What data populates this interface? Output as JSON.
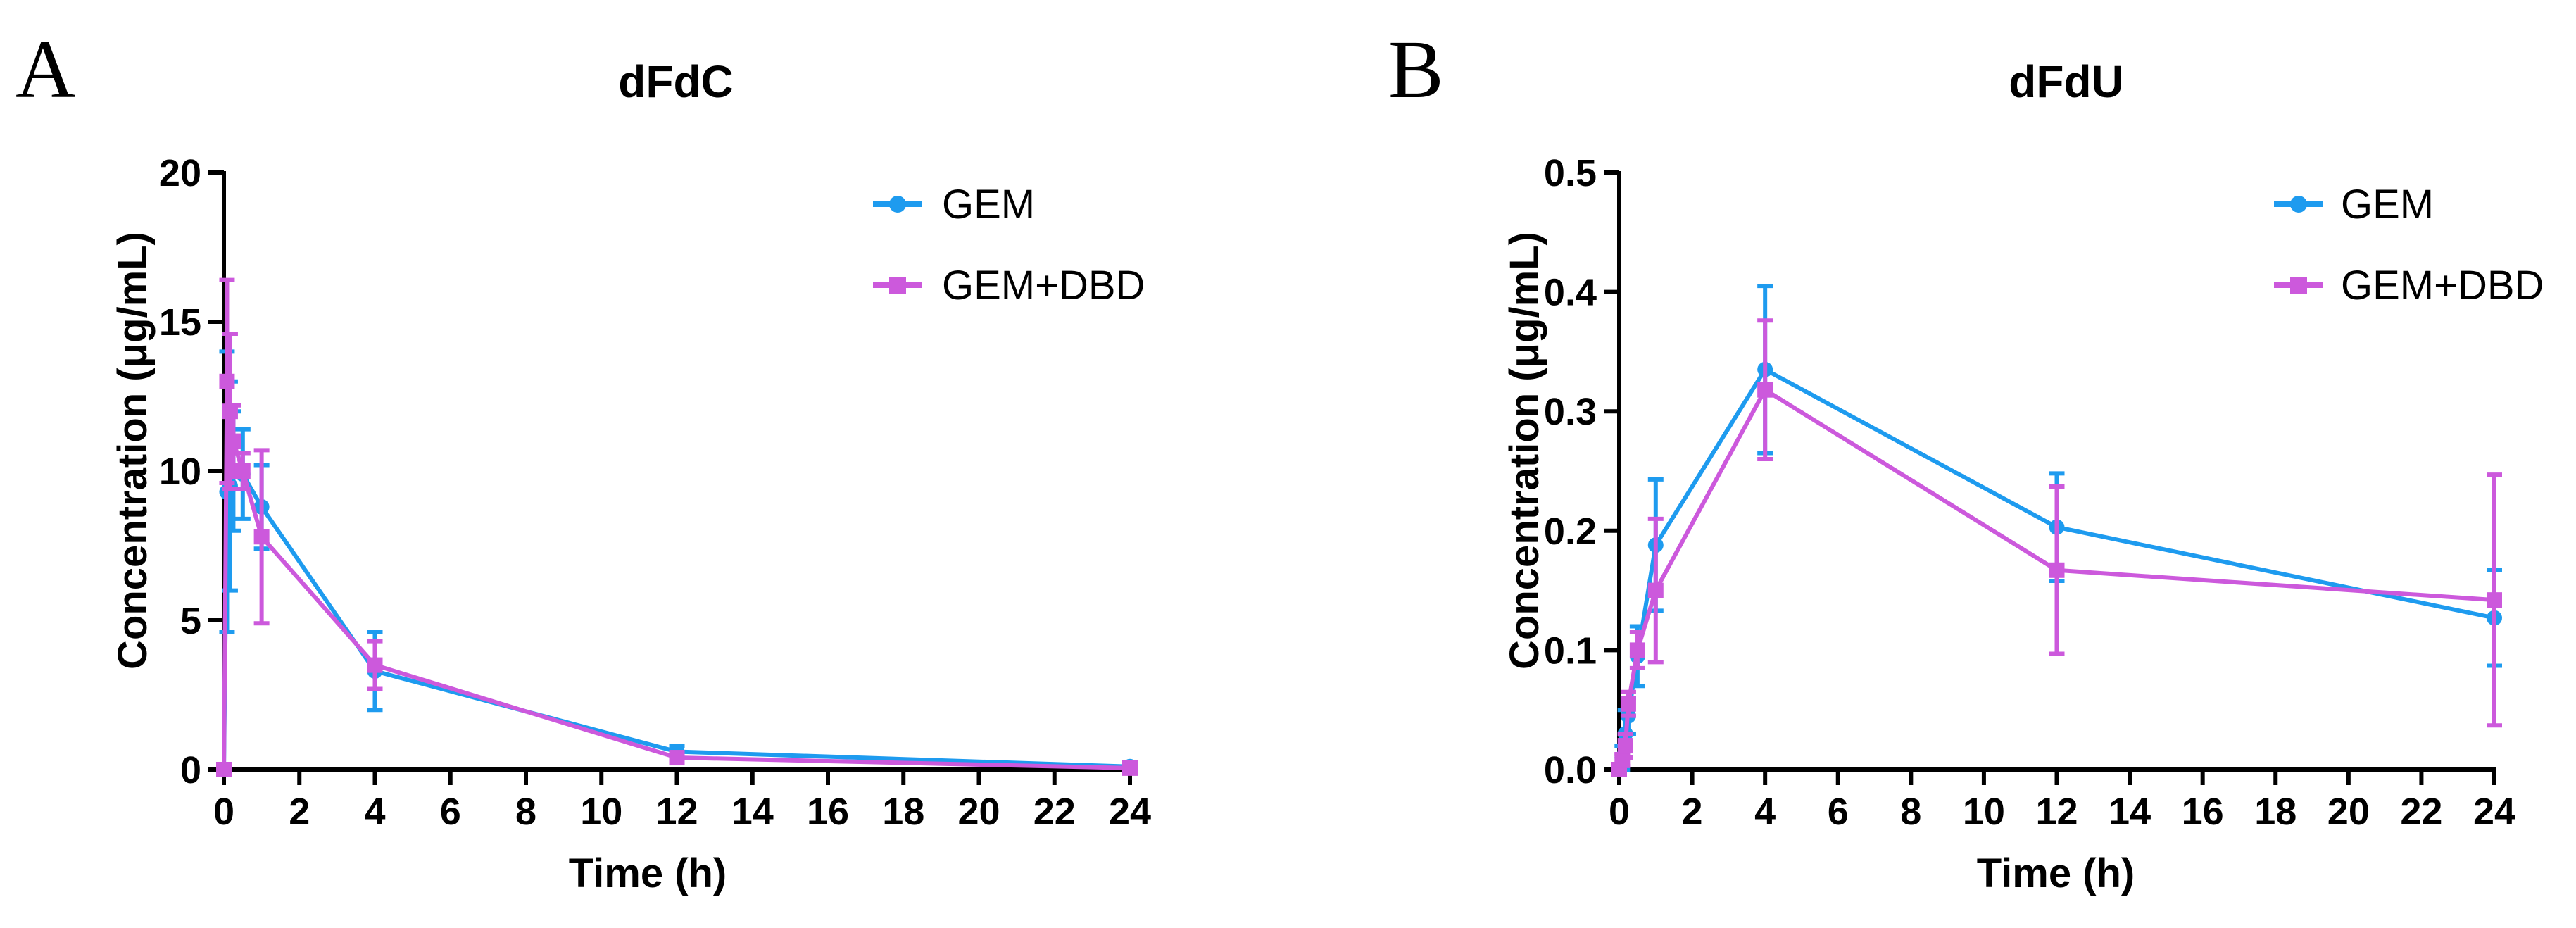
{
  "chart_data": [
    {
      "type": "line",
      "panel_label": "A",
      "title": "dFdC",
      "xlabel": "Time (h)",
      "ylabel": "Concentration (μg/mL)",
      "xlim": [
        0,
        24
      ],
      "ylim": [
        0,
        20
      ],
      "xticks": [
        0,
        2,
        4,
        6,
        8,
        10,
        12,
        14,
        16,
        18,
        20,
        22,
        24
      ],
      "yticks": [
        0,
        5,
        10,
        15,
        20
      ],
      "legend_position": "top-right",
      "series": [
        {
          "name": "GEM",
          "color": "#1e9bef",
          "marker": "circle",
          "x": [
            0,
            0.083,
            0.167,
            0.25,
            0.5,
            1,
            4,
            12,
            24
          ],
          "y": [
            0,
            9.3,
            9.5,
            10.0,
            9.9,
            8.8,
            3.3,
            0.6,
            0.1
          ],
          "err": [
            0,
            4.7,
            3.5,
            2.0,
            1.5,
            1.4,
            1.3,
            0.2,
            0.1
          ]
        },
        {
          "name": "GEM+DBD",
          "color": "#cc59dc",
          "marker": "square",
          "x": [
            0,
            0.083,
            0.167,
            0.25,
            0.5,
            1,
            4,
            12,
            24
          ],
          "y": [
            0,
            13.0,
            12.0,
            11.0,
            10.0,
            7.8,
            3.5,
            0.4,
            0.05
          ],
          "err": [
            0,
            3.4,
            2.6,
            1.2,
            0.6,
            2.9,
            0.8,
            0.15,
            0.05
          ]
        }
      ]
    },
    {
      "type": "line",
      "panel_label": "B",
      "title": "dFdU",
      "xlabel": "Time (h)",
      "ylabel": "Concentration (μg/mL)",
      "xlim": [
        0,
        24
      ],
      "ylim": [
        0,
        0.5
      ],
      "xticks": [
        0,
        2,
        4,
        6,
        8,
        10,
        12,
        14,
        16,
        18,
        20,
        22,
        24
      ],
      "yticks": [
        "0.0",
        "0.1",
        "0.2",
        "0.3",
        "0.4",
        "0.5"
      ],
      "legend_position": "top-right",
      "series": [
        {
          "name": "GEM",
          "color": "#1e9bef",
          "marker": "circle",
          "x": [
            0,
            0.083,
            0.167,
            0.25,
            0.5,
            1,
            4,
            12,
            24
          ],
          "y": [
            0,
            0.01,
            0.03,
            0.045,
            0.095,
            0.188,
            0.335,
            0.203,
            0.127
          ],
          "err": [
            0,
            0.01,
            0.02,
            0.015,
            0.025,
            0.055,
            0.07,
            0.045,
            0.04
          ]
        },
        {
          "name": "GEM+DBD",
          "color": "#cc59dc",
          "marker": "square",
          "x": [
            0,
            0.083,
            0.167,
            0.25,
            0.5,
            1,
            4,
            12,
            24
          ],
          "y": [
            0,
            0.008,
            0.02,
            0.055,
            0.1,
            0.15,
            0.318,
            0.167,
            0.142
          ],
          "err": [
            0,
            0.005,
            0.01,
            0.01,
            0.015,
            0.06,
            0.058,
            0.07,
            0.105
          ]
        }
      ]
    }
  ]
}
